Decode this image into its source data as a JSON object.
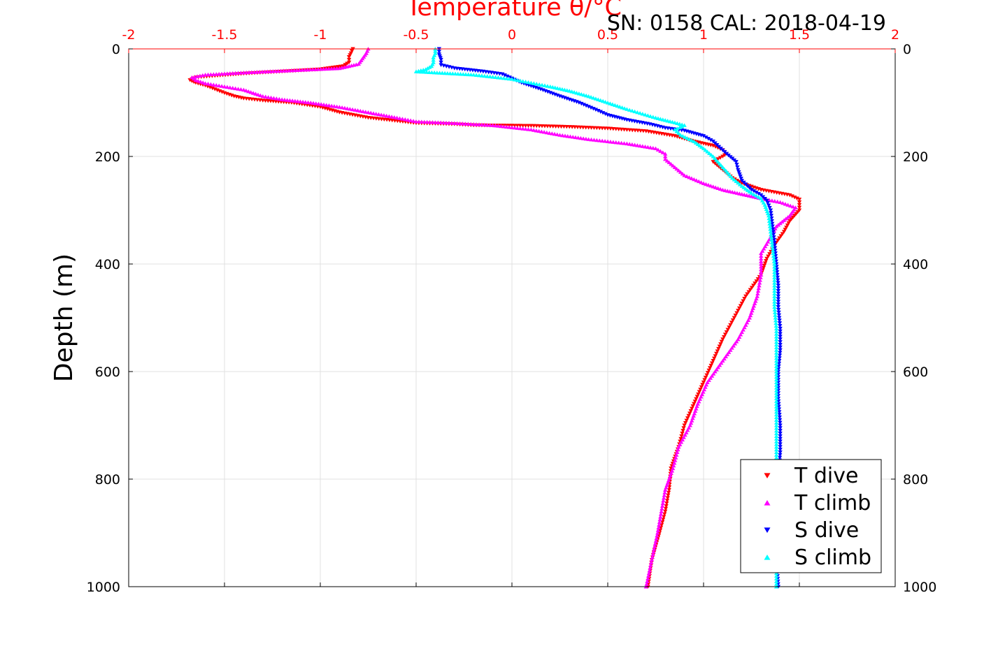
{
  "chart_data": {
    "type": "scatter",
    "title": "Temperature θ/°C",
    "subtitle": "SN: 0158  CAL: 2018-04-19",
    "xlabel": "Temperature θ/°C",
    "ylabel": "Depth (m)",
    "xlim": [
      -2,
      2
    ],
    "ylim": [
      0,
      1000
    ],
    "y_reversed": true,
    "x_axis_position": "top",
    "xticks": [
      "-2",
      "-1.5",
      "-1",
      "-0.5",
      "0",
      "0.5",
      "1",
      "1.5",
      "2"
    ],
    "yticks_left": [
      "0",
      "200",
      "400",
      "600",
      "800",
      "1000"
    ],
    "yticks_right": [
      "0",
      "200",
      "400",
      "600",
      "800",
      "1000"
    ],
    "grid": true,
    "legend_position": "bottom-right",
    "colors": {
      "axis_top": "#ff0000",
      "axis": "#000000",
      "grid": "#e0e0e0"
    },
    "series": [
      {
        "name": "T dive",
        "color": "#ff0000",
        "marker": "triangle-down",
        "points": [
          [
            -0.83,
            0
          ],
          [
            -0.84,
            8
          ],
          [
            -0.85,
            15
          ],
          [
            -0.85,
            25
          ],
          [
            -0.88,
            32
          ],
          [
            -1.0,
            38
          ],
          [
            -1.2,
            42
          ],
          [
            -1.4,
            46
          ],
          [
            -1.55,
            50
          ],
          [
            -1.65,
            53
          ],
          [
            -1.68,
            58
          ],
          [
            -1.65,
            63
          ],
          [
            -1.6,
            68
          ],
          [
            -1.55,
            75
          ],
          [
            -1.5,
            82
          ],
          [
            -1.45,
            88
          ],
          [
            -1.4,
            92
          ],
          [
            -1.3,
            96
          ],
          [
            -1.15,
            100
          ],
          [
            -1.0,
            108
          ],
          [
            -0.9,
            118
          ],
          [
            -0.75,
            128
          ],
          [
            -0.5,
            138
          ],
          [
            -0.3,
            140
          ],
          [
            -0.2,
            142
          ],
          [
            0.1,
            143
          ],
          [
            0.3,
            145
          ],
          [
            0.5,
            148
          ],
          [
            0.7,
            153
          ],
          [
            0.85,
            162
          ],
          [
            0.95,
            172
          ],
          [
            1.05,
            180
          ],
          [
            1.1,
            188
          ],
          [
            1.12,
            195
          ],
          [
            1.1,
            200
          ],
          [
            1.05,
            210
          ],
          [
            1.1,
            225
          ],
          [
            1.15,
            240
          ],
          [
            1.2,
            250
          ],
          [
            1.3,
            262
          ],
          [
            1.45,
            272
          ],
          [
            1.5,
            280
          ],
          [
            1.5,
            300
          ],
          [
            1.45,
            320
          ],
          [
            1.42,
            340
          ],
          [
            1.38,
            360
          ],
          [
            1.33,
            390
          ],
          [
            1.3,
            420
          ],
          [
            1.22,
            460
          ],
          [
            1.16,
            500
          ],
          [
            1.1,
            540
          ],
          [
            1.05,
            580
          ],
          [
            1.0,
            620
          ],
          [
            0.95,
            660
          ],
          [
            0.9,
            700
          ],
          [
            0.87,
            740
          ],
          [
            0.83,
            780
          ],
          [
            0.82,
            820
          ],
          [
            0.8,
            860
          ],
          [
            0.77,
            900
          ],
          [
            0.73,
            950
          ],
          [
            0.71,
            1000
          ]
        ]
      },
      {
        "name": "T climb",
        "color": "#ff00ff",
        "marker": "triangle-up",
        "points": [
          [
            -0.75,
            0
          ],
          [
            -0.76,
            8
          ],
          [
            -0.78,
            18
          ],
          [
            -0.8,
            28
          ],
          [
            -0.9,
            36
          ],
          [
            -1.15,
            40
          ],
          [
            -1.4,
            44
          ],
          [
            -1.6,
            48
          ],
          [
            -1.67,
            53
          ],
          [
            -1.65,
            58
          ],
          [
            -1.6,
            64
          ],
          [
            -1.5,
            70
          ],
          [
            -1.4,
            76
          ],
          [
            -1.35,
            82
          ],
          [
            -1.3,
            88
          ],
          [
            -1.2,
            94
          ],
          [
            -1.05,
            100
          ],
          [
            -0.9,
            108
          ],
          [
            -0.75,
            118
          ],
          [
            -0.6,
            128
          ],
          [
            -0.5,
            135
          ],
          [
            -0.3,
            138
          ],
          [
            -0.1,
            142
          ],
          [
            0.1,
            150
          ],
          [
            0.25,
            160
          ],
          [
            0.4,
            168
          ],
          [
            0.6,
            176
          ],
          [
            0.75,
            185
          ],
          [
            0.8,
            195
          ],
          [
            0.8,
            205
          ],
          [
            0.85,
            220
          ],
          [
            0.9,
            235
          ],
          [
            1.0,
            250
          ],
          [
            1.1,
            262
          ],
          [
            1.2,
            270
          ],
          [
            1.3,
            278
          ],
          [
            1.4,
            285
          ],
          [
            1.48,
            295
          ],
          [
            1.45,
            310
          ],
          [
            1.38,
            330
          ],
          [
            1.35,
            350
          ],
          [
            1.3,
            380
          ],
          [
            1.3,
            420
          ],
          [
            1.28,
            460
          ],
          [
            1.24,
            500
          ],
          [
            1.18,
            540
          ],
          [
            1.1,
            580
          ],
          [
            1.02,
            620
          ],
          [
            0.97,
            660
          ],
          [
            0.93,
            700
          ],
          [
            0.87,
            740
          ],
          [
            0.84,
            780
          ],
          [
            0.8,
            820
          ],
          [
            0.78,
            860
          ],
          [
            0.76,
            900
          ],
          [
            0.73,
            950
          ],
          [
            0.7,
            1000
          ]
        ]
      },
      {
        "name": "S dive",
        "color": "#0000ff",
        "marker": "triangle-down",
        "points": [
          [
            -0.38,
            0
          ],
          [
            -0.38,
            10
          ],
          [
            -0.37,
            20
          ],
          [
            -0.37,
            30
          ],
          [
            -0.3,
            36
          ],
          [
            -0.15,
            42
          ],
          [
            -0.05,
            47
          ],
          [
            0.0,
            55
          ],
          [
            0.05,
            63
          ],
          [
            0.15,
            75
          ],
          [
            0.25,
            88
          ],
          [
            0.35,
            100
          ],
          [
            0.45,
            115
          ],
          [
            0.5,
            123
          ],
          [
            0.6,
            132
          ],
          [
            0.72,
            140
          ],
          [
            0.8,
            147
          ],
          [
            0.9,
            152
          ],
          [
            1.0,
            162
          ],
          [
            1.05,
            172
          ],
          [
            1.08,
            182
          ],
          [
            1.12,
            195
          ],
          [
            1.17,
            210
          ],
          [
            1.18,
            225
          ],
          [
            1.2,
            245
          ],
          [
            1.25,
            262
          ],
          [
            1.3,
            272
          ],
          [
            1.33,
            282
          ],
          [
            1.35,
            300
          ],
          [
            1.36,
            330
          ],
          [
            1.37,
            360
          ],
          [
            1.38,
            400
          ],
          [
            1.39,
            440
          ],
          [
            1.39,
            480
          ],
          [
            1.4,
            520
          ],
          [
            1.4,
            560
          ],
          [
            1.39,
            600
          ],
          [
            1.39,
            650
          ],
          [
            1.4,
            700
          ],
          [
            1.4,
            750
          ],
          [
            1.39,
            800
          ],
          [
            1.39,
            850
          ],
          [
            1.38,
            900
          ],
          [
            1.38,
            950
          ],
          [
            1.39,
            1000
          ]
        ]
      },
      {
        "name": "S climb",
        "color": "#00ffff",
        "marker": "triangle-up",
        "points": [
          [
            -0.4,
            0
          ],
          [
            -0.4,
            8
          ],
          [
            -0.41,
            16
          ],
          [
            -0.41,
            25
          ],
          [
            -0.42,
            32
          ],
          [
            -0.45,
            38
          ],
          [
            -0.5,
            42
          ],
          [
            -0.35,
            45
          ],
          [
            -0.2,
            48
          ],
          [
            -0.1,
            52
          ],
          [
            0.0,
            56
          ],
          [
            0.1,
            63
          ],
          [
            0.2,
            70
          ],
          [
            0.3,
            78
          ],
          [
            0.4,
            88
          ],
          [
            0.5,
            100
          ],
          [
            0.6,
            112
          ],
          [
            0.75,
            128
          ],
          [
            0.85,
            137
          ],
          [
            0.9,
            142
          ],
          [
            0.85,
            150
          ],
          [
            0.88,
            160
          ],
          [
            0.95,
            172
          ],
          [
            1.0,
            185
          ],
          [
            1.05,
            200
          ],
          [
            1.1,
            220
          ],
          [
            1.15,
            240
          ],
          [
            1.2,
            255
          ],
          [
            1.25,
            268
          ],
          [
            1.3,
            278
          ],
          [
            1.32,
            290
          ],
          [
            1.34,
            310
          ],
          [
            1.35,
            340
          ],
          [
            1.36,
            370
          ],
          [
            1.37,
            400
          ],
          [
            1.37,
            440
          ],
          [
            1.37,
            480
          ],
          [
            1.38,
            520
          ],
          [
            1.38,
            560
          ],
          [
            1.38,
            600
          ],
          [
            1.38,
            650
          ],
          [
            1.38,
            700
          ],
          [
            1.38,
            750
          ],
          [
            1.38,
            800
          ],
          [
            1.38,
            850
          ],
          [
            1.38,
            900
          ],
          [
            1.38,
            950
          ],
          [
            1.38,
            1000
          ]
        ]
      }
    ]
  }
}
